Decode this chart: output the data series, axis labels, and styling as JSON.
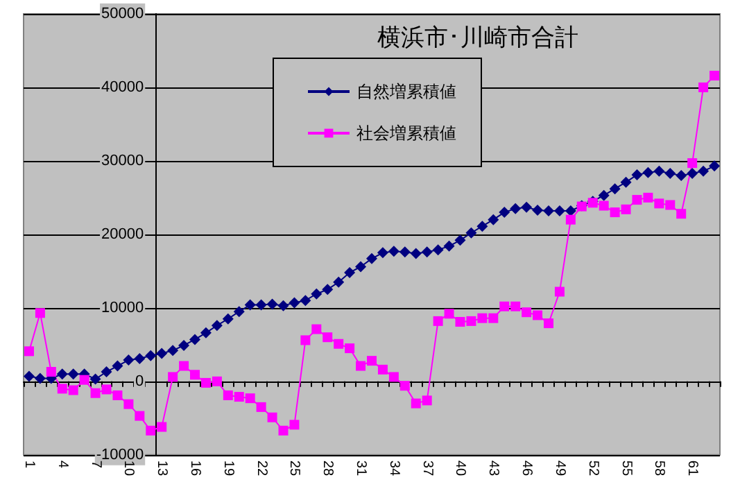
{
  "chart_data": {
    "type": "line",
    "title": "横浜市･川崎市合計",
    "categories": [
      "1",
      null,
      null,
      "4",
      null,
      null,
      "7",
      null,
      null,
      "10",
      null,
      null,
      "13",
      null,
      null,
      "16",
      null,
      null,
      "19",
      null,
      null,
      "22",
      null,
      null,
      "25",
      null,
      null,
      "28",
      null,
      null,
      "31",
      null,
      null,
      "34",
      null,
      null,
      "37",
      null,
      null,
      "40",
      null,
      null,
      "43",
      null,
      null,
      "46",
      null,
      null,
      "49",
      null,
      null,
      "52",
      null,
      null,
      "55",
      null,
      null,
      "58",
      null,
      null,
      "61",
      null,
      null
    ],
    "series": [
      {
        "name": "自然増累積値",
        "color": "#000080",
        "marker": "diamond",
        "values": [
          700,
          400,
          400,
          1000,
          1000,
          1000,
          300,
          1300,
          2100,
          2900,
          3100,
          3500,
          3800,
          4200,
          4900,
          5700,
          6600,
          7600,
          8500,
          9500,
          10400,
          10400,
          10500,
          10300,
          10700,
          11000,
          11900,
          12500,
          13500,
          14800,
          15600,
          16700,
          17500,
          17700,
          17600,
          17400,
          17600,
          17900,
          18400,
          19200,
          20200,
          21100,
          22000,
          23000,
          23500,
          23700,
          23300,
          23200,
          23200,
          23200,
          23900,
          24500,
          25300,
          26200,
          27100,
          28100,
          28400,
          28600,
          28300,
          28000,
          28300,
          28600,
          29300
        ]
      },
      {
        "name": "社会増累積値",
        "color": "#ff00ff",
        "marker": "square",
        "values": [
          4100,
          9300,
          1300,
          -1000,
          -1200,
          200,
          -1600,
          -1100,
          -1900,
          -3100,
          -4700,
          -6700,
          -6200,
          600,
          2100,
          900,
          -200,
          0,
          -1900,
          -2100,
          -2300,
          -3500,
          -4900,
          -6700,
          -5900,
          5600,
          7100,
          6000,
          5100,
          4500,
          2100,
          2800,
          1600,
          600,
          -600,
          -3000,
          -2600,
          8200,
          9200,
          8100,
          8200,
          8600,
          8600,
          10200,
          10200,
          9400,
          9000,
          7900,
          12200,
          22000,
          23800,
          24300,
          23900,
          23000,
          23400,
          24700,
          25000,
          24200,
          24000,
          22800,
          29700,
          40000,
          41600
        ]
      }
    ],
    "ylim": [
      -10000,
      50000
    ],
    "yticks": [
      -10000,
      0,
      10000,
      20000,
      30000,
      40000,
      50000
    ],
    "grid": "y",
    "legend": "top",
    "line_style": "solid"
  }
}
